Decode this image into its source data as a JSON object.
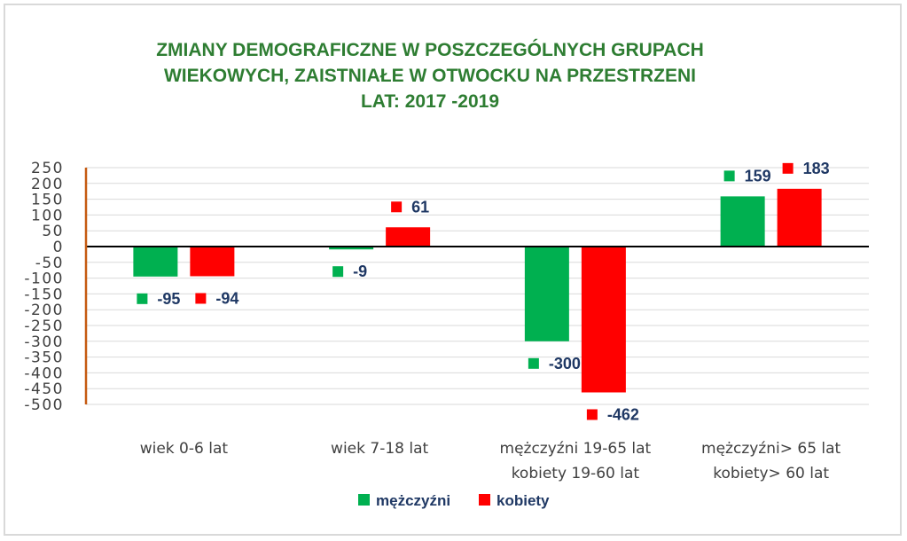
{
  "colors": {
    "men": "#00b050",
    "women": "#ff0000",
    "title": "#2e7d32",
    "label": "#1f3864",
    "axis_line": "#c55a11",
    "grid": "#d9d9d9"
  },
  "chart_data": {
    "type": "bar",
    "title": [
      "ZMIANY DEMOGRAFICZNE W POSZCZEGÓLNYCH GRUPACH",
      "WIEKOWYCH, ZAISTNIAŁE W OTWOCKU NA PRZESTRZENI",
      "LAT: 2017 -2019"
    ],
    "categories": [
      [
        "wiek 0-6 lat"
      ],
      [
        "wiek 7-18 lat"
      ],
      [
        "mężczyźni 19-65 lat",
        "kobiety 19-60 lat"
      ],
      [
        "mężczyźni> 65 lat",
        "kobiety> 60 lat"
      ]
    ],
    "series": [
      {
        "name": "mężczyźni",
        "color": "#00b050",
        "values": [
          -95,
          -9,
          -300,
          159
        ]
      },
      {
        "name": "kobiety",
        "color": "#ff0000",
        "values": [
          -94,
          61,
          -462,
          183
        ]
      }
    ],
    "ylim": [
      -500,
      250
    ],
    "ytick_step": 50,
    "yticks": [
      "250",
      "200",
      "150",
      "100",
      "50",
      "0",
      "-50",
      "-100",
      "-150",
      "-200",
      "-250",
      "-300",
      "-350",
      "-400",
      "-450",
      "-500"
    ],
    "grid": true,
    "legend": "bottom"
  }
}
